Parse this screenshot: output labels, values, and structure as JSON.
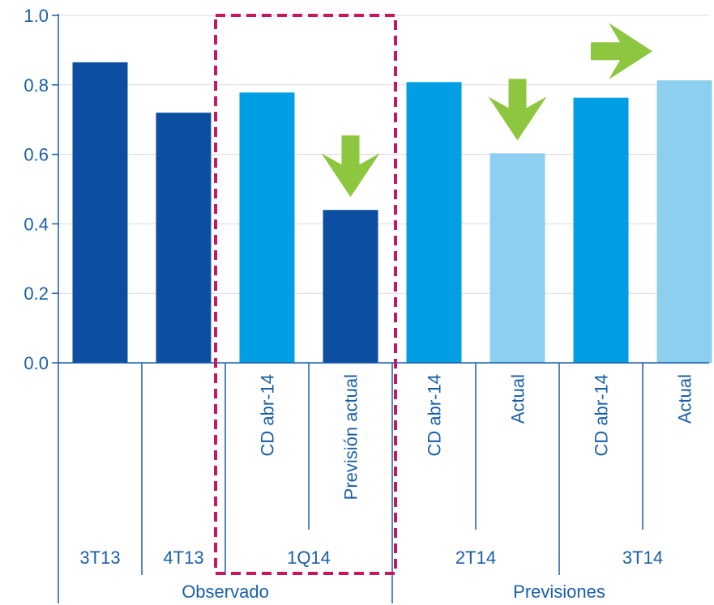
{
  "chart_data": {
    "type": "bar",
    "title": "",
    "xlabel": "",
    "ylabel": "",
    "ylim": [
      0,
      1.0
    ],
    "y_ticks": [
      "0.0",
      "0.2",
      "0.4",
      "0.6",
      "0.8",
      "1.0"
    ],
    "grid": "horizontal",
    "bars": [
      {
        "label": "",
        "value": 0.865,
        "color": "#0b4ea2"
      },
      {
        "label": "",
        "value": 0.72,
        "color": "#0b4ea2"
      },
      {
        "label": "CD abr-14",
        "value": 0.778,
        "color": "#009fe3"
      },
      {
        "label": "Previsión actual",
        "value": 0.44,
        "color": "#0b4ea2"
      },
      {
        "label": "CD abr-14",
        "value": 0.808,
        "color": "#009fe3"
      },
      {
        "label": "Actual",
        "value": 0.603,
        "color": "#8ccfef"
      },
      {
        "label": "CD abr-14",
        "value": 0.763,
        "color": "#009fe3"
      },
      {
        "label": "Actual",
        "value": 0.813,
        "color": "#8ccfef"
      }
    ],
    "groups": [
      {
        "label": "3T13",
        "span": [
          0,
          0
        ]
      },
      {
        "label": "4T13",
        "span": [
          1,
          1
        ]
      },
      {
        "label": "1Q14",
        "span": [
          2,
          3
        ]
      },
      {
        "label": "2T14",
        "span": [
          4,
          5
        ]
      },
      {
        "label": "3T14",
        "span": [
          6,
          7
        ]
      }
    ],
    "supergroups": [
      {
        "label": "Observado",
        "span": [
          0,
          3
        ]
      },
      {
        "label": "Previsiones",
        "span": [
          4,
          7
        ]
      }
    ],
    "annotations": [
      {
        "type": "arrow-down-icon",
        "bar": 3,
        "color": "#8dc63f"
      },
      {
        "type": "arrow-down-icon",
        "bar": 5,
        "color": "#8dc63f"
      },
      {
        "type": "arrow-right-icon",
        "bar": 7,
        "color": "#8dc63f"
      },
      {
        "type": "highlight-box",
        "span": [
          2,
          3
        ],
        "color": "#c8175f"
      }
    ],
    "colors": {
      "axis": "#1a5fa8",
      "grid": "#d9d9d9",
      "dark_blue": "#0b4ea2",
      "mid_blue": "#009fe3",
      "light_blue": "#8ccfef",
      "arrow_green": "#8dc63f",
      "highlight": "#c8175f"
    }
  }
}
